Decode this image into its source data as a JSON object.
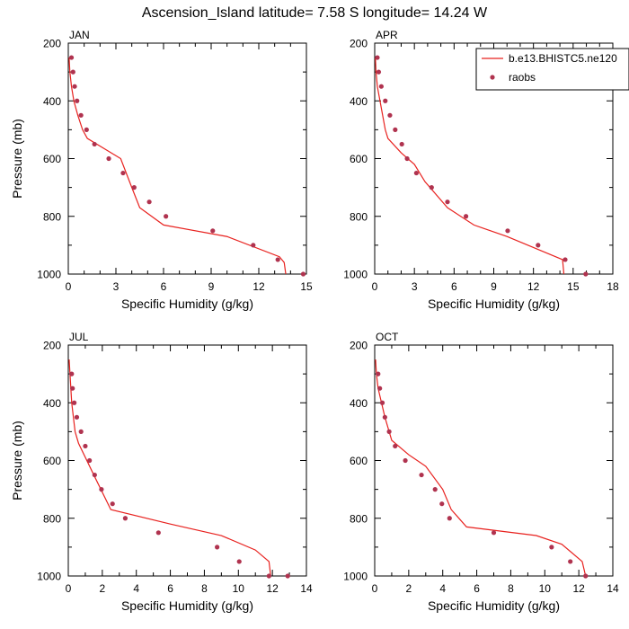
{
  "figure": {
    "title": "Ascension_Island  latitude= 7.58 S longitude= 14.24 W",
    "colors": {
      "model": "#e8221f",
      "obs": "#b0334f",
      "axis": "#000000"
    }
  },
  "legend": {
    "model_label": "b.e13.BHISTC5.ne120",
    "obs_label": "raobs"
  },
  "chart_data": [
    {
      "type": "line",
      "panel": "JAN",
      "title": "JAN",
      "xlabel": "Specific Humidity (g/kg)",
      "ylabel": "Pressure (mb)",
      "xlim": [
        0,
        15
      ],
      "ylim": [
        1000,
        200
      ],
      "xticks": [
        0,
        3,
        6,
        9,
        12,
        15
      ],
      "yticks": [
        200,
        400,
        600,
        800,
        1000
      ],
      "legend": false,
      "series": [
        {
          "name": "b.e13.BHISTC5.ne120",
          "kind": "line",
          "x": [
            0.05,
            0.1,
            0.2,
            0.35,
            0.6,
            0.9,
            1.2,
            2.4,
            3.3,
            4.0,
            4.5,
            6.0,
            10.0,
            13.3,
            13.6,
            13.7
          ],
          "y": [
            250,
            300,
            350,
            400,
            450,
            500,
            530,
            570,
            600,
            700,
            770,
            830,
            870,
            940,
            960,
            1000
          ]
        },
        {
          "name": "raobs",
          "kind": "scatter",
          "x": [
            0.2,
            0.3,
            0.4,
            0.55,
            0.8,
            1.15,
            1.65,
            2.55,
            3.45,
            4.15,
            5.1,
            6.15,
            9.1,
            11.65,
            13.2,
            14.8
          ],
          "y": [
            250,
            300,
            350,
            400,
            450,
            500,
            550,
            600,
            650,
            700,
            750,
            800,
            850,
            900,
            950,
            1000
          ]
        }
      ]
    },
    {
      "type": "line",
      "panel": "APR",
      "title": "APR",
      "xlabel": "Specific Humidity (g/kg)",
      "ylabel": "",
      "xlim": [
        0,
        18
      ],
      "ylim": [
        1000,
        200
      ],
      "xticks": [
        0,
        3,
        6,
        9,
        12,
        15,
        18
      ],
      "yticks": [
        200,
        400,
        600,
        800,
        1000
      ],
      "legend": true,
      "series": [
        {
          "name": "b.e13.BHISTC5.ne120",
          "kind": "line",
          "x": [
            0.05,
            0.1,
            0.2,
            0.4,
            0.6,
            0.8,
            1.0,
            2.0,
            3.0,
            3.8,
            5.5,
            7.5,
            10.0,
            14.2,
            14.3
          ],
          "y": [
            250,
            300,
            350,
            400,
            450,
            500,
            530,
            580,
            620,
            680,
            770,
            830,
            870,
            950,
            1000
          ]
        },
        {
          "name": "raobs",
          "kind": "scatter",
          "x": [
            0.2,
            0.3,
            0.5,
            0.8,
            1.15,
            1.55,
            2.05,
            2.45,
            3.15,
            4.3,
            5.5,
            6.9,
            10.05,
            12.35,
            14.4,
            15.95
          ],
          "y": [
            250,
            300,
            350,
            400,
            450,
            500,
            550,
            600,
            650,
            700,
            750,
            800,
            850,
            900,
            950,
            1000
          ]
        }
      ]
    },
    {
      "type": "line",
      "panel": "JUL",
      "title": "JUL",
      "xlabel": "Specific Humidity (g/kg)",
      "ylabel": "Pressure (mb)",
      "xlim": [
        0,
        14
      ],
      "ylim": [
        1000,
        200
      ],
      "xticks": [
        0,
        2,
        4,
        6,
        8,
        10,
        12,
        14
      ],
      "yticks": [
        200,
        400,
        600,
        800,
        1000
      ],
      "legend": false,
      "series": [
        {
          "name": "b.e13.BHISTC5.ne120",
          "kind": "line",
          "x": [
            0.05,
            0.1,
            0.15,
            0.2,
            0.3,
            0.4,
            0.6,
            1.5,
            2.5,
            6.0,
            9.0,
            11.0,
            11.8,
            11.9
          ],
          "y": [
            250,
            300,
            350,
            400,
            450,
            500,
            540,
            650,
            770,
            820,
            860,
            910,
            950,
            1000
          ]
        },
        {
          "name": "raobs",
          "kind": "scatter",
          "x": [
            0.2,
            0.25,
            0.35,
            0.5,
            0.75,
            1.0,
            1.25,
            1.55,
            1.95,
            2.6,
            3.35,
            5.3,
            8.75,
            10.05,
            11.8,
            12.9
          ],
          "y": [
            300,
            350,
            400,
            450,
            500,
            550,
            600,
            650,
            700,
            750,
            800,
            850,
            900,
            950,
            1000,
            1000
          ]
        }
      ]
    },
    {
      "type": "line",
      "panel": "OCT",
      "title": "OCT",
      "xlabel": "Specific Humidity (g/kg)",
      "ylabel": "",
      "xlim": [
        0,
        14
      ],
      "ylim": [
        1000,
        200
      ],
      "xticks": [
        0,
        2,
        4,
        6,
        8,
        10,
        12,
        14
      ],
      "yticks": [
        200,
        400,
        600,
        800,
        1000
      ],
      "legend": false,
      "series": [
        {
          "name": "b.e13.BHISTC5.ne120",
          "kind": "line",
          "x": [
            0.05,
            0.1,
            0.2,
            0.4,
            0.6,
            1.0,
            2.0,
            3.0,
            4.0,
            4.5,
            5.4,
            9.5,
            11.0,
            12.2,
            12.4
          ],
          "y": [
            250,
            300,
            350,
            400,
            450,
            530,
            580,
            620,
            700,
            770,
            830,
            860,
            890,
            950,
            1000
          ]
        },
        {
          "name": "raobs",
          "kind": "scatter",
          "x": [
            0.2,
            0.3,
            0.45,
            0.6,
            0.85,
            1.2,
            1.8,
            2.75,
            3.55,
            3.95,
            4.4,
            7.0,
            10.4,
            11.5,
            12.4
          ],
          "y": [
            300,
            350,
            400,
            450,
            500,
            550,
            600,
            650,
            700,
            750,
            800,
            850,
            900,
            950,
            1000
          ]
        }
      ]
    }
  ]
}
